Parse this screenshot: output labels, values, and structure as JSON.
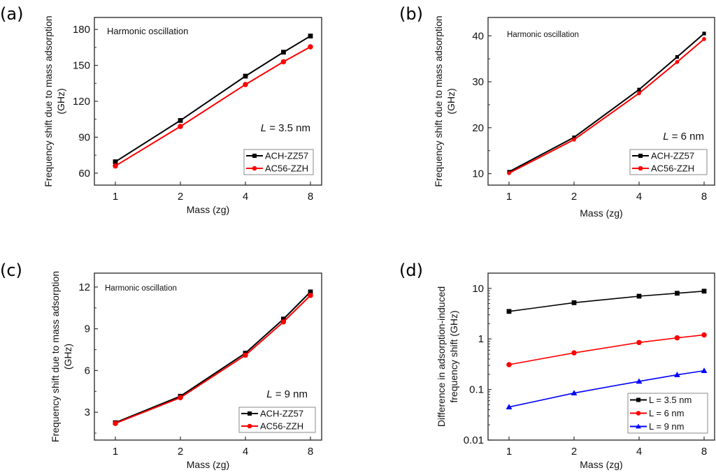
{
  "chart_data": [
    {
      "panel": "(a)",
      "type": "line",
      "title": "",
      "xlabel": "Mass (zg)",
      "ylabel": [
        "Frequency shift due to mass adsorption",
        "(GHz)"
      ],
      "x_scale": "log2",
      "x": [
        1,
        2,
        4,
        6,
        8
      ],
      "xticks": [
        1,
        2,
        4,
        8
      ],
      "xtick_labels": [
        "1",
        "2",
        "4",
        "8"
      ],
      "ylim": [
        50,
        190
      ],
      "yticks": [
        60,
        90,
        120,
        150,
        180
      ],
      "ytick_labels": [
        "60",
        "90",
        "120",
        "150",
        "180"
      ],
      "annotation": "Harmonic oscillation",
      "length_label": {
        "var": "L",
        "text": " = 3.5 nm"
      },
      "legend_position": "bottom-right",
      "series": [
        {
          "name": "ACH-ZZ57",
          "color": "#000000",
          "marker": "square",
          "values": [
            69.5,
            104,
            141,
            161,
            174.5
          ]
        },
        {
          "name": "AC56-ZZH",
          "color": "#ff0000",
          "marker": "circle",
          "values": [
            66,
            99,
            134,
            153,
            165.5
          ]
        }
      ]
    },
    {
      "panel": "(b)",
      "type": "line",
      "title": "",
      "xlabel": "Mass (zg)",
      "ylabel": [
        "Frequency shift due to mass adsorption",
        "(GHz)"
      ],
      "x_scale": "log2",
      "x": [
        1,
        2,
        4,
        6,
        8
      ],
      "xticks": [
        1,
        2,
        4,
        8
      ],
      "xtick_labels": [
        "1",
        "2",
        "4",
        "8"
      ],
      "ylim": [
        7.5,
        44
      ],
      "yticks": [
        10,
        20,
        30,
        40
      ],
      "ytick_labels": [
        "10",
        "20",
        "30",
        "40"
      ],
      "annotation": "Harmonic oscillation",
      "length_label": {
        "var": "L",
        "text": " = 6 nm"
      },
      "legend_position": "bottom-right",
      "series": [
        {
          "name": "ACH-ZZ57",
          "color": "#000000",
          "marker": "square",
          "values": [
            10.4,
            17.9,
            28.3,
            35.4,
            40.5
          ]
        },
        {
          "name": "AC56-ZZH",
          "color": "#ff0000",
          "marker": "circle",
          "values": [
            10.1,
            17.4,
            27.5,
            34.3,
            39.3
          ]
        }
      ]
    },
    {
      "panel": "(c)",
      "type": "line",
      "title": "",
      "xlabel": "Mass (zg)",
      "ylabel": [
        "Frequency shift due to mass adsorption",
        "(GHz)"
      ],
      "x_scale": "log2",
      "x": [
        1,
        2,
        4,
        6,
        8
      ],
      "xticks": [
        1,
        2,
        4,
        8
      ],
      "xtick_labels": [
        "1",
        "2",
        "4",
        "8"
      ],
      "ylim": [
        1,
        13
      ],
      "yticks": [
        3,
        6,
        9,
        12
      ],
      "ytick_labels": [
        "3",
        "6",
        "9",
        "12"
      ],
      "annotation": "Harmonic oscillation",
      "length_label": {
        "var": "L",
        "text": " = 9 nm"
      },
      "legend_position": "bottom-right",
      "series": [
        {
          "name": "ACH-ZZ57",
          "color": "#000000",
          "marker": "square",
          "values": [
            2.25,
            4.15,
            7.25,
            9.7,
            11.65
          ]
        },
        {
          "name": "AC56-ZZH",
          "color": "#ff0000",
          "marker": "circle",
          "values": [
            2.2,
            4.05,
            7.1,
            9.5,
            11.4
          ]
        }
      ]
    },
    {
      "panel": "(d)",
      "type": "line",
      "title": "",
      "xlabel": "Mass (zg)",
      "ylabel": [
        "Difference  in  adsorption-induced",
        "frequency  shift   (GHz)"
      ],
      "x_scale": "log2",
      "y_scale": "log10",
      "x": [
        1,
        2,
        4,
        6,
        8
      ],
      "xticks": [
        1,
        2,
        4,
        8
      ],
      "xtick_labels": [
        "1",
        "2",
        "4",
        "8"
      ],
      "ylim": [
        0.01,
        20
      ],
      "yticks": [
        0.01,
        0.1,
        1,
        10
      ],
      "ytick_labels": [
        "0.01",
        "0.1",
        "1",
        "10"
      ],
      "annotation": "",
      "legend_position": "bottom-right",
      "series": [
        {
          "name": "L = 3.5 nm",
          "color": "#000000",
          "marker": "square",
          "values": [
            3.5,
            5.2,
            7.0,
            8.0,
            8.8
          ]
        },
        {
          "name": "L = 6 nm",
          "color": "#ff0000",
          "marker": "circle",
          "values": [
            0.31,
            0.53,
            0.85,
            1.05,
            1.2
          ]
        },
        {
          "name": "L = 9 nm",
          "color": "#0000ff",
          "marker": "triangle",
          "values": [
            0.045,
            0.085,
            0.145,
            0.195,
            0.235
          ]
        }
      ]
    }
  ]
}
